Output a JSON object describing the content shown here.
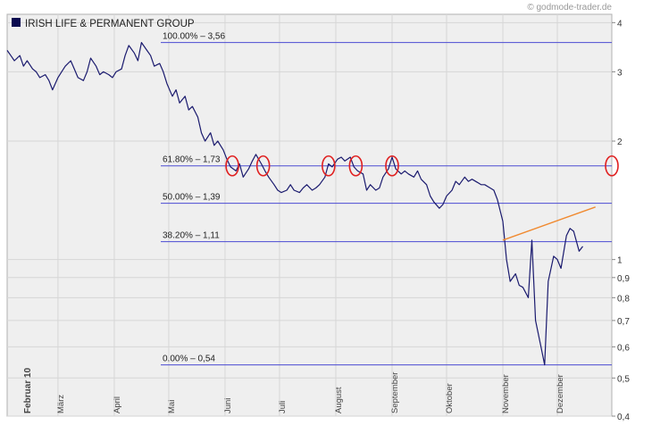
{
  "watermark": "© godmode-trader.de",
  "chart_data": {
    "type": "line",
    "title": "IRISH LIFE & PERMANENT GROUP",
    "y_scale": "log",
    "ylim": [
      0.4,
      4.2
    ],
    "xlim": [
      "2010-02-01",
      "2010-12-31"
    ],
    "y_ticks": [
      {
        "value": 4,
        "label": "4"
      },
      {
        "value": 3,
        "label": "3"
      },
      {
        "value": 2,
        "label": "2"
      },
      {
        "value": 1,
        "label": "1"
      },
      {
        "value": 0.9,
        "label": "0,9"
      },
      {
        "value": 0.8,
        "label": "0,8"
      },
      {
        "value": 0.7,
        "label": "0,7"
      },
      {
        "value": 0.6,
        "label": "0,6"
      },
      {
        "value": 0.5,
        "label": "0,5"
      },
      {
        "value": 0.4,
        "label": "0,4"
      }
    ],
    "x_ticks": [
      {
        "date": "2010-02-01",
        "label": "Februar 10"
      },
      {
        "date": "2010-03-01",
        "label": "März"
      },
      {
        "date": "2010-04-01",
        "label": "April"
      },
      {
        "date": "2010-05-01",
        "label": "Mai"
      },
      {
        "date": "2010-06-01",
        "label": "Juni"
      },
      {
        "date": "2010-07-01",
        "label": "Juli"
      },
      {
        "date": "2010-08-01",
        "label": "August"
      },
      {
        "date": "2010-09-01",
        "label": "September"
      },
      {
        "date": "2010-10-01",
        "label": "Oktober"
      },
      {
        "date": "2010-11-01",
        "label": "November"
      },
      {
        "date": "2010-12-01",
        "label": "Dezember"
      }
    ],
    "fib_levels": [
      {
        "label": "100.00% – 3,56",
        "value": 3.56
      },
      {
        "label": "61.80% – 1,73",
        "value": 1.73
      },
      {
        "label": "50.00% – 1,39",
        "value": 1.39
      },
      {
        "label": "38.20% – 1,11",
        "value": 1.11
      },
      {
        "label": "0.00% – 0,54",
        "value": 0.54
      }
    ],
    "trendline": {
      "from": [
        "2010-11-01",
        1.12
      ],
      "to": [
        "2010-12-22",
        1.36
      ],
      "color": "#f08a30"
    },
    "marker_dates": [
      "2010-06-05",
      "2010-06-22",
      "2010-07-28",
      "2010-08-12",
      "2010-09-01",
      "2010-12-31"
    ],
    "colors": {
      "line": "#1a1a6e",
      "fib": "#4b4bd2",
      "marker": "#e02020",
      "plot_bg": "#efefef",
      "title_box": "#0a0a50"
    },
    "series": [
      {
        "values": [
          [
            "2010-02-01",
            3.4
          ],
          [
            "2010-02-03",
            3.3
          ],
          [
            "2010-02-05",
            3.2
          ],
          [
            "2010-02-08",
            3.3
          ],
          [
            "2010-02-10",
            3.1
          ],
          [
            "2010-02-12",
            3.2
          ],
          [
            "2010-02-15",
            3.05
          ],
          [
            "2010-02-17",
            3.0
          ],
          [
            "2010-02-19",
            2.9
          ],
          [
            "2010-02-22",
            2.95
          ],
          [
            "2010-02-24",
            2.85
          ],
          [
            "2010-02-26",
            2.7
          ],
          [
            "2010-03-01",
            2.9
          ],
          [
            "2010-03-03",
            3.0
          ],
          [
            "2010-03-05",
            3.1
          ],
          [
            "2010-03-08",
            3.2
          ],
          [
            "2010-03-10",
            3.05
          ],
          [
            "2010-03-12",
            2.9
          ],
          [
            "2010-03-15",
            2.85
          ],
          [
            "2010-03-17",
            3.0
          ],
          [
            "2010-03-19",
            3.25
          ],
          [
            "2010-03-22",
            3.1
          ],
          [
            "2010-03-24",
            2.95
          ],
          [
            "2010-03-26",
            3.0
          ],
          [
            "2010-03-29",
            2.95
          ],
          [
            "2010-03-31",
            2.9
          ],
          [
            "2010-04-02",
            3.0
          ],
          [
            "2010-04-05",
            3.05
          ],
          [
            "2010-04-07",
            3.3
          ],
          [
            "2010-04-09",
            3.5
          ],
          [
            "2010-04-12",
            3.35
          ],
          [
            "2010-04-14",
            3.2
          ],
          [
            "2010-04-16",
            3.56
          ],
          [
            "2010-04-19",
            3.4
          ],
          [
            "2010-04-21",
            3.3
          ],
          [
            "2010-04-23",
            3.1
          ],
          [
            "2010-04-26",
            3.15
          ],
          [
            "2010-04-28",
            3.0
          ],
          [
            "2010-04-30",
            2.8
          ],
          [
            "2010-05-03",
            2.6
          ],
          [
            "2010-05-05",
            2.7
          ],
          [
            "2010-05-07",
            2.5
          ],
          [
            "2010-05-10",
            2.6
          ],
          [
            "2010-05-12",
            2.4
          ],
          [
            "2010-05-14",
            2.45
          ],
          [
            "2010-05-17",
            2.3
          ],
          [
            "2010-05-19",
            2.1
          ],
          [
            "2010-05-21",
            2.0
          ],
          [
            "2010-05-24",
            2.1
          ],
          [
            "2010-05-26",
            1.95
          ],
          [
            "2010-05-28",
            2.0
          ],
          [
            "2010-05-31",
            1.9
          ],
          [
            "2010-06-02",
            1.8
          ],
          [
            "2010-06-04",
            1.72
          ],
          [
            "2010-06-07",
            1.68
          ],
          [
            "2010-06-09",
            1.75
          ],
          [
            "2010-06-11",
            1.62
          ],
          [
            "2010-06-14",
            1.7
          ],
          [
            "2010-06-16",
            1.78
          ],
          [
            "2010-06-18",
            1.85
          ],
          [
            "2010-06-21",
            1.75
          ],
          [
            "2010-06-23",
            1.68
          ],
          [
            "2010-06-25",
            1.62
          ],
          [
            "2010-06-28",
            1.55
          ],
          [
            "2010-06-30",
            1.5
          ],
          [
            "2010-07-02",
            1.48
          ],
          [
            "2010-07-05",
            1.5
          ],
          [
            "2010-07-07",
            1.55
          ],
          [
            "2010-07-09",
            1.5
          ],
          [
            "2010-07-12",
            1.48
          ],
          [
            "2010-07-14",
            1.52
          ],
          [
            "2010-07-16",
            1.55
          ],
          [
            "2010-07-19",
            1.5
          ],
          [
            "2010-07-21",
            1.52
          ],
          [
            "2010-07-23",
            1.55
          ],
          [
            "2010-07-26",
            1.62
          ],
          [
            "2010-07-28",
            1.75
          ],
          [
            "2010-07-30",
            1.72
          ],
          [
            "2010-08-02",
            1.8
          ],
          [
            "2010-08-04",
            1.82
          ],
          [
            "2010-08-06",
            1.78
          ],
          [
            "2010-08-09",
            1.82
          ],
          [
            "2010-08-11",
            1.72
          ],
          [
            "2010-08-13",
            1.68
          ],
          [
            "2010-08-16",
            1.65
          ],
          [
            "2010-08-18",
            1.5
          ],
          [
            "2010-08-20",
            1.55
          ],
          [
            "2010-08-23",
            1.5
          ],
          [
            "2010-08-25",
            1.52
          ],
          [
            "2010-08-27",
            1.62
          ],
          [
            "2010-08-30",
            1.7
          ],
          [
            "2010-09-01",
            1.82
          ],
          [
            "2010-09-03",
            1.7
          ],
          [
            "2010-09-06",
            1.65
          ],
          [
            "2010-09-08",
            1.68
          ],
          [
            "2010-09-10",
            1.65
          ],
          [
            "2010-09-13",
            1.62
          ],
          [
            "2010-09-15",
            1.68
          ],
          [
            "2010-09-17",
            1.6
          ],
          [
            "2010-09-20",
            1.55
          ],
          [
            "2010-09-22",
            1.45
          ],
          [
            "2010-09-24",
            1.4
          ],
          [
            "2010-09-27",
            1.35
          ],
          [
            "2010-09-29",
            1.38
          ],
          [
            "2010-10-01",
            1.45
          ],
          [
            "2010-10-04",
            1.5
          ],
          [
            "2010-10-06",
            1.58
          ],
          [
            "2010-10-08",
            1.55
          ],
          [
            "2010-10-11",
            1.62
          ],
          [
            "2010-10-13",
            1.58
          ],
          [
            "2010-10-15",
            1.6
          ],
          [
            "2010-10-18",
            1.57
          ],
          [
            "2010-10-20",
            1.55
          ],
          [
            "2010-10-22",
            1.55
          ],
          [
            "2010-10-25",
            1.52
          ],
          [
            "2010-10-27",
            1.5
          ],
          [
            "2010-10-29",
            1.42
          ],
          [
            "2010-11-01",
            1.25
          ],
          [
            "2010-11-03",
            1.0
          ],
          [
            "2010-11-05",
            0.88
          ],
          [
            "2010-11-08",
            0.92
          ],
          [
            "2010-11-10",
            0.86
          ],
          [
            "2010-11-12",
            0.85
          ],
          [
            "2010-11-15",
            0.8
          ],
          [
            "2010-11-17",
            1.12
          ],
          [
            "2010-11-19",
            0.7
          ],
          [
            "2010-11-22",
            0.6
          ],
          [
            "2010-11-24",
            0.54
          ],
          [
            "2010-11-26",
            0.88
          ],
          [
            "2010-11-29",
            1.02
          ],
          [
            "2010-12-01",
            1.0
          ],
          [
            "2010-12-03",
            0.95
          ],
          [
            "2010-12-06",
            1.15
          ],
          [
            "2010-12-08",
            1.2
          ],
          [
            "2010-12-10",
            1.18
          ],
          [
            "2010-12-13",
            1.05
          ],
          [
            "2010-12-15",
            1.08
          ]
        ]
      }
    ]
  }
}
